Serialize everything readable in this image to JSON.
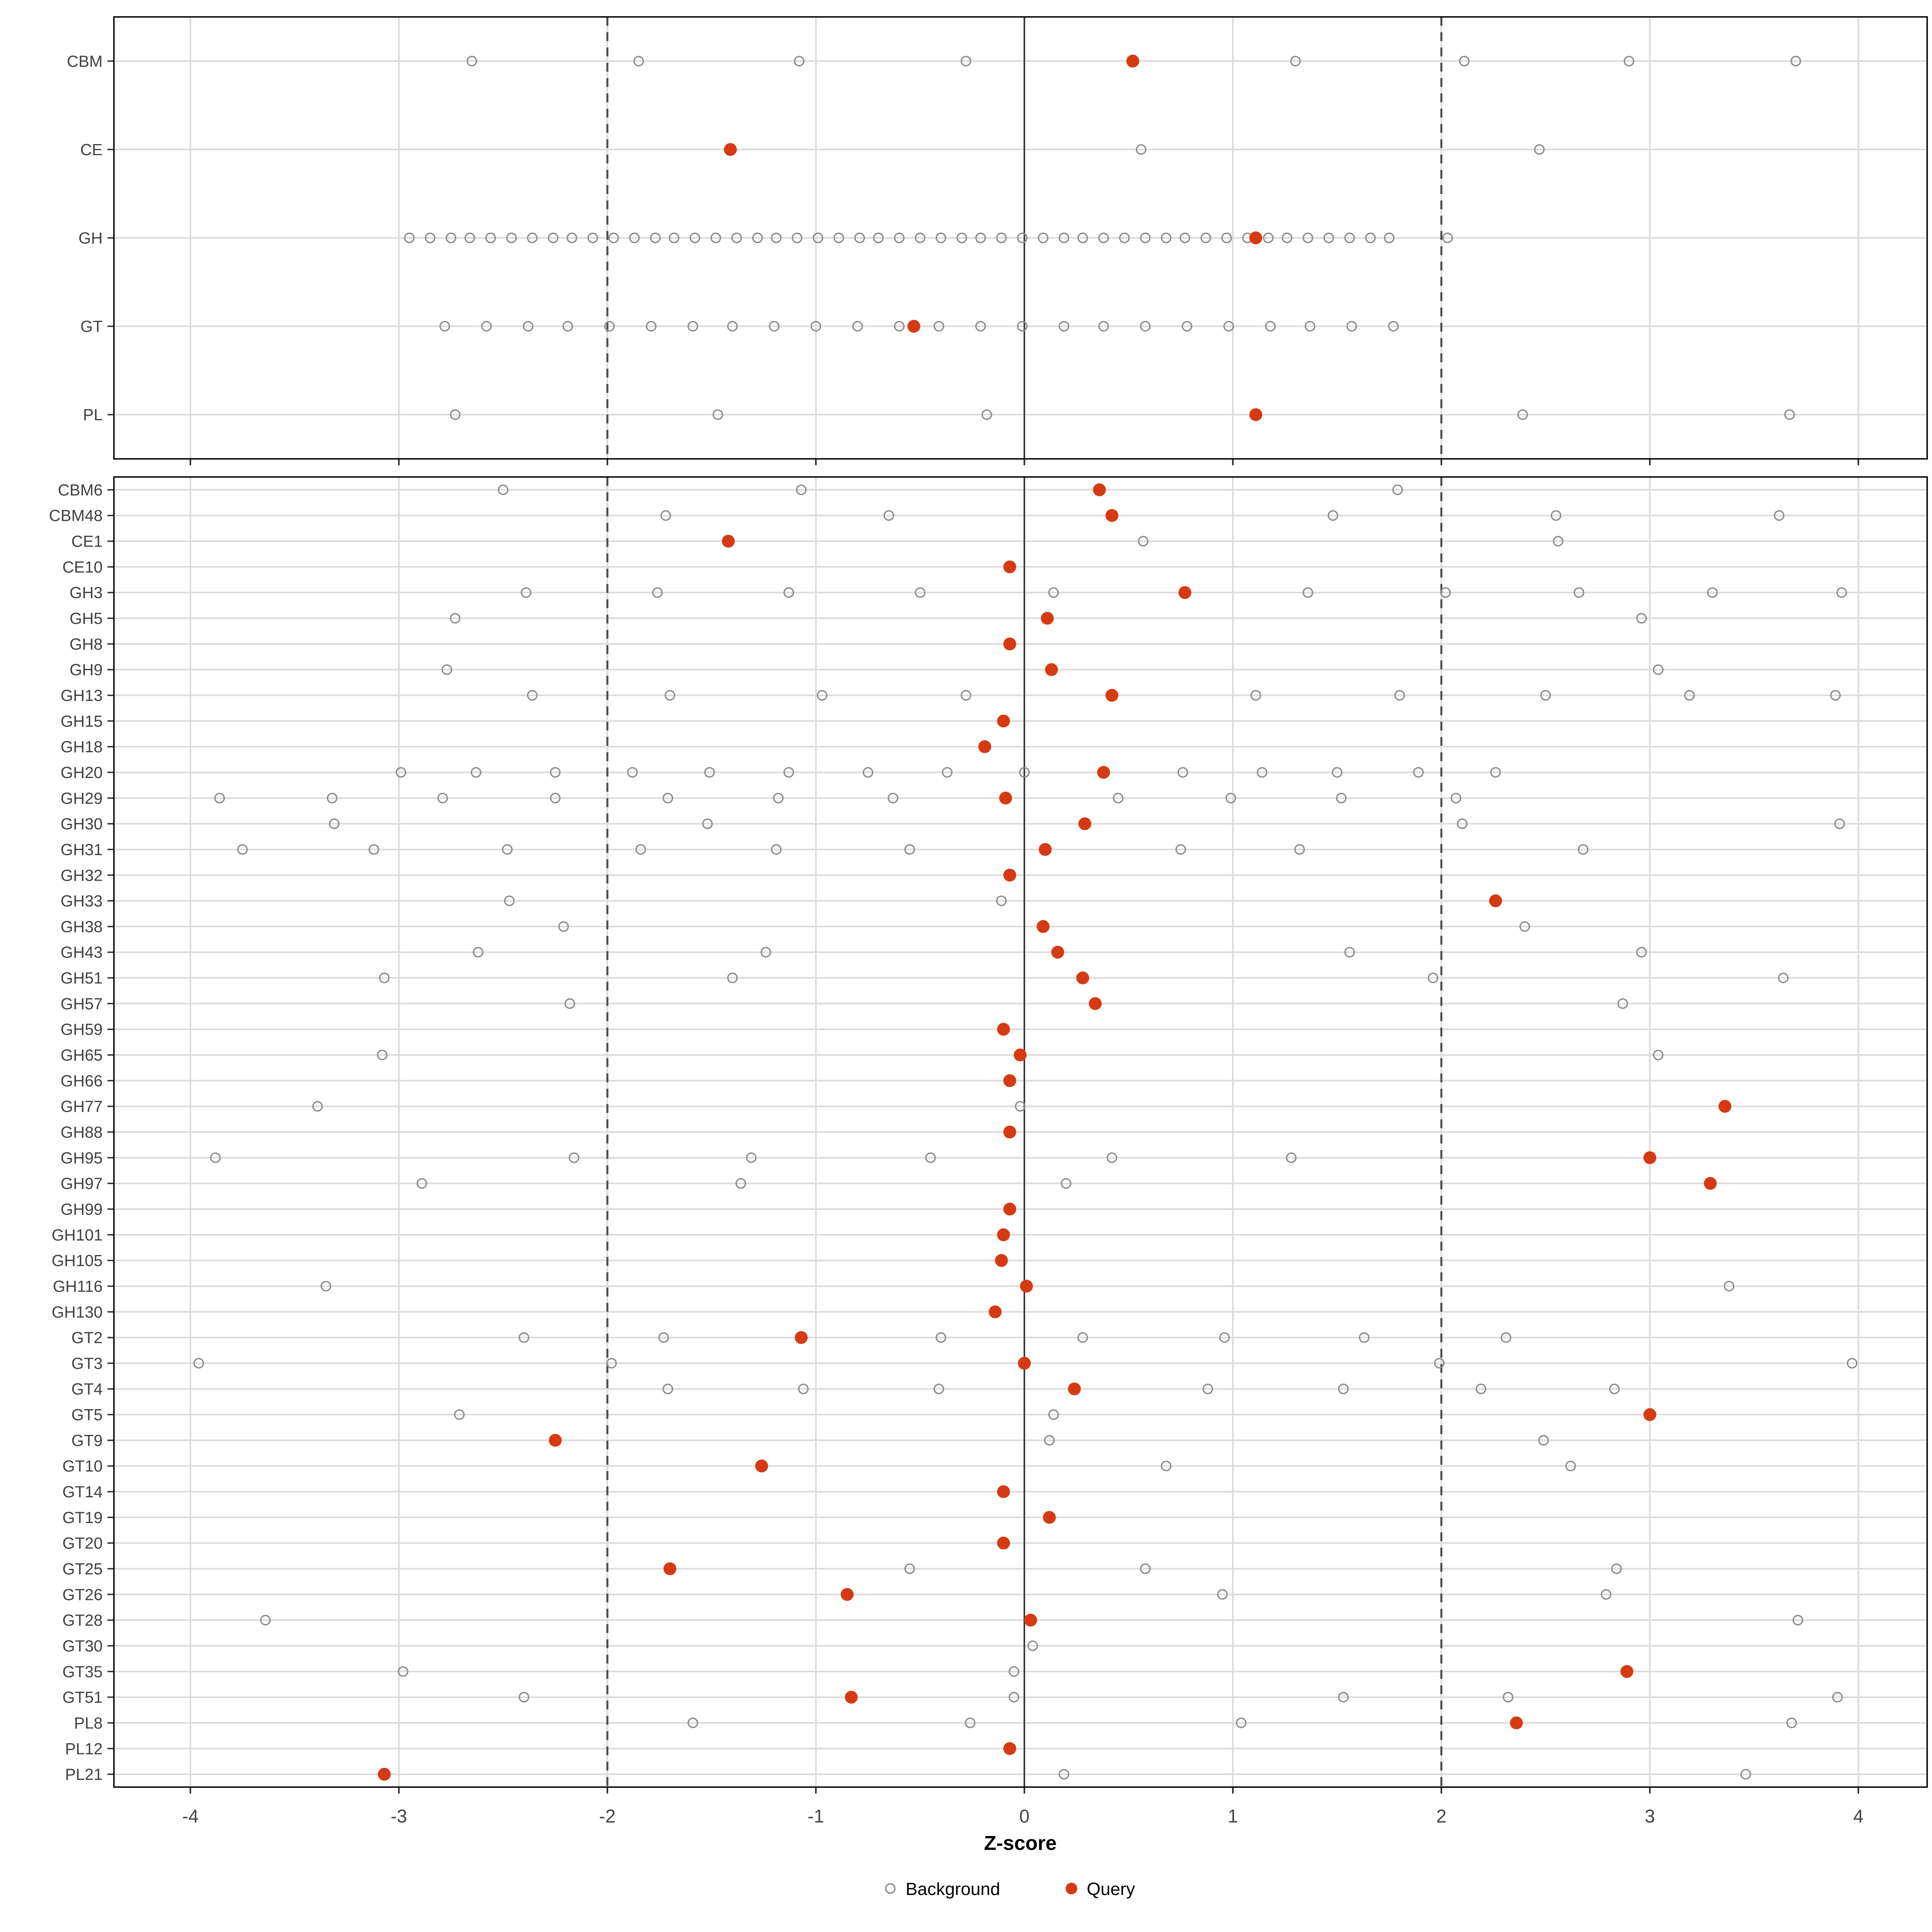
{
  "chart_data": {
    "type": "scatter",
    "title": "",
    "xlabel": "Z-score",
    "x_ticks": [
      -4,
      -3,
      -2,
      -1,
      0,
      1,
      2,
      3,
      4
    ],
    "xlim": [
      -4.37,
      4.33
    ],
    "grid": "on",
    "reference_lines": {
      "solid_at": 0,
      "dashed_at": [
        -2,
        2
      ]
    },
    "legend": {
      "position": "bottom",
      "background_label": "Background",
      "query_label": "Query"
    },
    "colors": {
      "query": "#D63A12",
      "background_stroke": "#8C8C8C",
      "grid": "#DBDBDB",
      "dashed_line": "#4D4D4D",
      "zero_line": "#3A3A3A",
      "panel_border": "#000000",
      "axis_text": "#454545"
    },
    "top_panel": {
      "rows": [
        {
          "label": "CBM",
          "background": [
            -2.65,
            -1.85,
            -1.08,
            -0.28,
            1.3,
            2.11,
            2.9,
            3.7
          ],
          "query": 0.52
        },
        {
          "label": "CE",
          "background": [
            0.56,
            2.47
          ],
          "query": -1.41
        },
        {
          "label": "GH",
          "background": [
            -2.95,
            -2.85,
            -2.75,
            -2.66,
            -2.56,
            -2.46,
            -2.36,
            -2.26,
            -2.17,
            -2.07,
            -1.97,
            -1.87,
            -1.77,
            -1.68,
            -1.58,
            -1.48,
            -1.38,
            -1.28,
            -1.19,
            -1.09,
            -0.99,
            -0.89,
            -0.79,
            -0.7,
            -0.6,
            -0.5,
            -0.4,
            -0.3,
            -0.21,
            -0.11,
            -0.01,
            0.09,
            0.19,
            0.28,
            0.38,
            0.48,
            0.58,
            0.68,
            0.77,
            0.87,
            0.97,
            1.07,
            1.17,
            1.26,
            1.36,
            1.46,
            1.56,
            1.66,
            1.75,
            2.03
          ],
          "query": 1.11
        },
        {
          "label": "GT",
          "background": [
            -2.78,
            -2.58,
            -2.38,
            -2.19,
            -1.99,
            -1.79,
            -1.59,
            -1.4,
            -1.2,
            -1.0,
            -0.8,
            -0.6,
            -0.41,
            -0.21,
            -0.01,
            0.19,
            0.38,
            0.58,
            0.78,
            0.98,
            1.18,
            1.37,
            1.57,
            1.77
          ],
          "query": -0.53
        },
        {
          "label": "PL",
          "background": [
            -2.73,
            -1.47,
            -0.18,
            2.39,
            3.67
          ],
          "query": 1.11
        }
      ]
    },
    "bottom_panel": {
      "rows": [
        {
          "label": "CBM6",
          "background": [
            -2.5,
            -1.07,
            1.79
          ],
          "query": 0.36
        },
        {
          "label": "CBM48",
          "background": [
            -1.72,
            -0.65,
            1.48,
            2.55,
            3.62
          ],
          "query": 0.42
        },
        {
          "label": "CE1",
          "background": [
            0.57,
            2.56
          ],
          "query": -1.42
        },
        {
          "label": "CE10",
          "background": [],
          "query": -0.07
        },
        {
          "label": "GH3",
          "background": [
            -2.39,
            -1.76,
            -1.13,
            -0.5,
            0.14,
            1.36,
            2.02,
            2.66,
            3.3,
            3.92
          ],
          "query": 0.77
        },
        {
          "label": "GH5",
          "background": [
            -2.73,
            2.96
          ],
          "query": 0.11
        },
        {
          "label": "GH8",
          "background": [],
          "query": -0.07
        },
        {
          "label": "GH9",
          "background": [
            -2.77,
            3.04
          ],
          "query": 0.13
        },
        {
          "label": "GH13",
          "background": [
            -2.36,
            -1.7,
            -0.97,
            -0.28,
            1.11,
            1.8,
            2.5,
            3.19,
            3.89
          ],
          "query": 0.42
        },
        {
          "label": "GH15",
          "background": [],
          "query": -0.1
        },
        {
          "label": "GH18",
          "background": [],
          "query": -0.19
        },
        {
          "label": "GH20",
          "background": [
            -2.99,
            -2.63,
            -2.25,
            -1.88,
            -1.51,
            -1.13,
            -0.75,
            -0.37,
            0.0,
            0.76,
            1.14,
            1.5,
            1.89,
            2.26
          ],
          "query": 0.38
        },
        {
          "label": "GH29",
          "background": [
            -3.86,
            -3.32,
            -2.79,
            -2.25,
            -1.71,
            -1.18,
            -0.63,
            0.45,
            0.99,
            1.52,
            2.07
          ],
          "query": -0.09
        },
        {
          "label": "GH30",
          "background": [
            -3.31,
            -1.52,
            2.1,
            3.91
          ],
          "query": 0.29
        },
        {
          "label": "GH31",
          "background": [
            -3.75,
            -3.12,
            -2.48,
            -1.84,
            -1.19,
            -0.55,
            0.75,
            1.32,
            2.68
          ],
          "query": 0.1
        },
        {
          "label": "GH32",
          "background": [],
          "query": -0.07
        },
        {
          "label": "GH33",
          "background": [
            -2.47,
            -0.11
          ],
          "query": 2.26
        },
        {
          "label": "GH38",
          "background": [
            -2.21,
            2.4
          ],
          "query": 0.09
        },
        {
          "label": "GH43",
          "background": [
            -2.62,
            -1.24,
            1.56,
            2.96
          ],
          "query": 0.16
        },
        {
          "label": "GH51",
          "background": [
            -3.07,
            -1.4,
            1.96,
            3.64
          ],
          "query": 0.28
        },
        {
          "label": "GH57",
          "background": [
            -2.18,
            2.87
          ],
          "query": 0.34
        },
        {
          "label": "GH59",
          "background": [],
          "query": -0.1
        },
        {
          "label": "GH65",
          "background": [
            -3.08,
            3.04
          ],
          "query": -0.02
        },
        {
          "label": "GH66",
          "background": [],
          "query": -0.07
        },
        {
          "label": "GH77",
          "background": [
            -3.39,
            -0.02
          ],
          "query": 3.36
        },
        {
          "label": "GH88",
          "background": [],
          "query": -0.07
        },
        {
          "label": "GH95",
          "background": [
            -3.88,
            -2.16,
            -1.31,
            -0.45,
            0.42,
            1.28
          ],
          "query": 3.0
        },
        {
          "label": "GH97",
          "background": [
            -2.89,
            -1.36,
            0.2
          ],
          "query": 3.29
        },
        {
          "label": "GH99",
          "background": [],
          "query": -0.07
        },
        {
          "label": "GH101",
          "background": [],
          "query": -0.1
        },
        {
          "label": "GH105",
          "background": [],
          "query": -0.11
        },
        {
          "label": "GH116",
          "background": [
            -3.35,
            3.38
          ],
          "query": 0.01
        },
        {
          "label": "GH130",
          "background": [],
          "query": -0.14
        },
        {
          "label": "GT2",
          "background": [
            -2.4,
            -1.73,
            -0.4,
            0.28,
            0.96,
            1.63,
            2.31
          ],
          "query": -1.07
        },
        {
          "label": "GT3",
          "background": [
            -3.96,
            -1.98,
            1.99,
            3.97
          ],
          "query": 0.0
        },
        {
          "label": "GT4",
          "background": [
            -1.71,
            -1.06,
            -0.41,
            0.88,
            1.53,
            2.19,
            2.83
          ],
          "query": 0.24
        },
        {
          "label": "GT5",
          "background": [
            -2.71,
            0.14
          ],
          "query": 3.0
        },
        {
          "label": "GT9",
          "background": [
            0.12,
            2.49
          ],
          "query": -2.25
        },
        {
          "label": "GT10",
          "background": [
            0.68,
            2.62
          ],
          "query": -1.26
        },
        {
          "label": "GT14",
          "background": [],
          "query": -0.1
        },
        {
          "label": "GT19",
          "background": [],
          "query": 0.12
        },
        {
          "label": "GT20",
          "background": [],
          "query": -0.1
        },
        {
          "label": "GT25",
          "background": [
            -0.55,
            0.58,
            2.84
          ],
          "query": -1.7
        },
        {
          "label": "GT26",
          "background": [
            0.95,
            2.79
          ],
          "query": -0.85
        },
        {
          "label": "GT28",
          "background": [
            -3.64,
            3.71
          ],
          "query": 0.03
        },
        {
          "label": "GT30",
          "background": [
            0.04
          ],
          "query": null
        },
        {
          "label": "GT35",
          "background": [
            -2.98,
            -0.05
          ],
          "query": 2.89
        },
        {
          "label": "GT51",
          "background": [
            -2.4,
            -0.05,
            1.53,
            2.32,
            3.9
          ],
          "query": -0.83
        },
        {
          "label": "PL8",
          "background": [
            -1.59,
            -0.26,
            1.04,
            3.68
          ],
          "query": 2.36
        },
        {
          "label": "PL12",
          "background": [],
          "query": -0.07
        },
        {
          "label": "PL21",
          "background": [
            0.19,
            3.46
          ],
          "query": -3.07
        }
      ]
    }
  }
}
